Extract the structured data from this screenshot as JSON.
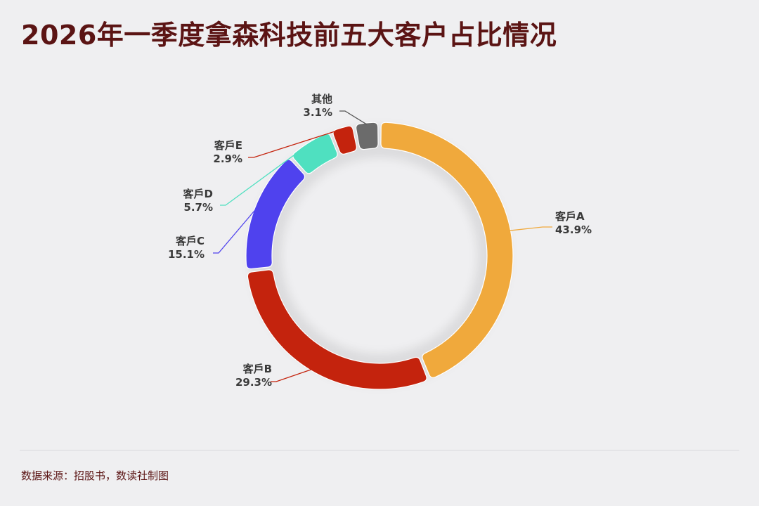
{
  "title": "2026年一季度拿森科技前五大客户占比情况",
  "source": "数据来源：招股书，数读社制图",
  "chart_data": {
    "type": "pie",
    "style": "donut",
    "title": "2026年一季度拿森科技前五大客户占比情况",
    "categories": [
      "客戶A",
      "客戶B",
      "客戶C",
      "客戶D",
      "客戶E",
      "其他"
    ],
    "values": [
      43.9,
      29.3,
      15.1,
      5.7,
      2.9,
      3.1
    ],
    "value_labels": [
      "43.9%",
      "29.3%",
      "15.1%",
      "5.7%",
      "2.9%",
      "3.1%"
    ],
    "colors": [
      "#f0a93c",
      "#c4230d",
      "#4f42ee",
      "#4fe0c0",
      "#c4230d",
      "#6b6b6b"
    ],
    "start": "top, clockwise",
    "legend": "none (leader-line labels)"
  }
}
